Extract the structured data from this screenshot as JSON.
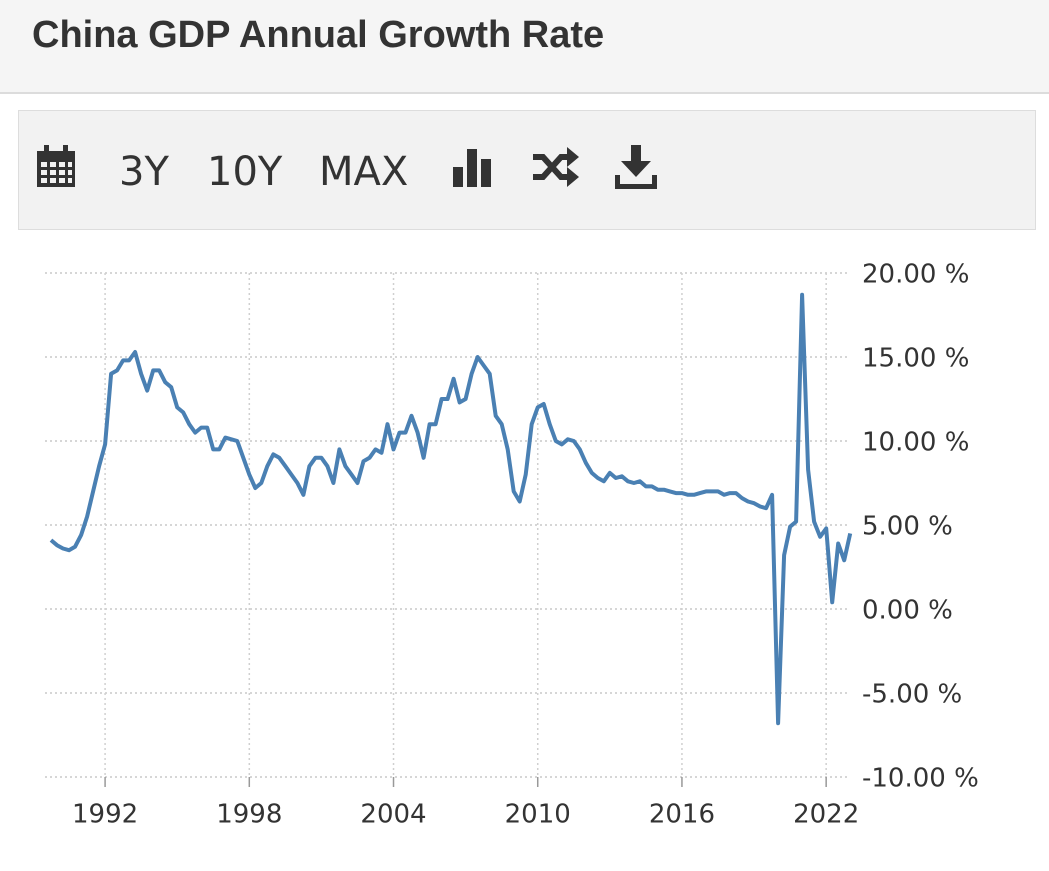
{
  "toolbar": [
    "3Y",
    "10Y",
    "MAX"
  ],
  "chart_data": {
    "type": "line",
    "title": "China GDP Annual Growth Rate",
    "color": "#4a80b3",
    "grid": true,
    "xlim": [
      1989.5,
      2023.2
    ],
    "xticks": [
      1992,
      1998,
      2004,
      2010,
      2016,
      2022
    ],
    "ylim": [
      -10,
      20
    ],
    "yticks": [
      {
        "value": 20,
        "label": "20.00 %"
      },
      {
        "value": 15,
        "label": "15.00 %"
      },
      {
        "value": 10,
        "label": "10.00 %"
      },
      {
        "value": 5,
        "label": "5.00 %"
      },
      {
        "value": 0,
        "label": "0.00 %"
      },
      {
        "value": -5,
        "label": "-5.00 %"
      },
      {
        "value": -10,
        "label": "-10.00 %"
      }
    ],
    "x": [
      1989.75,
      1990.0,
      1990.25,
      1990.5,
      1990.75,
      1991.0,
      1991.25,
      1991.5,
      1991.75,
      1992.0,
      1992.25,
      1992.5,
      1992.75,
      1993.0,
      1993.25,
      1993.5,
      1993.75,
      1994.0,
      1994.25,
      1994.5,
      1994.75,
      1995.0,
      1995.25,
      1995.5,
      1995.75,
      1996.0,
      1996.25,
      1996.5,
      1996.75,
      1997.0,
      1997.25,
      1997.5,
      1997.75,
      1998.0,
      1998.25,
      1998.5,
      1998.75,
      1999.0,
      1999.25,
      1999.5,
      1999.75,
      2000.0,
      2000.25,
      2000.5,
      2000.75,
      2001.0,
      2001.25,
      2001.5,
      2001.75,
      2002.0,
      2002.25,
      2002.5,
      2002.75,
      2003.0,
      2003.25,
      2003.5,
      2003.75,
      2004.0,
      2004.25,
      2004.5,
      2004.75,
      2005.0,
      2005.25,
      2005.5,
      2005.75,
      2006.0,
      2006.25,
      2006.5,
      2006.75,
      2007.0,
      2007.25,
      2007.5,
      2007.75,
      2008.0,
      2008.25,
      2008.5,
      2008.75,
      2009.0,
      2009.25,
      2009.5,
      2009.75,
      2010.0,
      2010.25,
      2010.5,
      2010.75,
      2011.0,
      2011.25,
      2011.5,
      2011.75,
      2012.0,
      2012.25,
      2012.5,
      2012.75,
      2013.0,
      2013.25,
      2013.5,
      2013.75,
      2014.0,
      2014.25,
      2014.5,
      2014.75,
      2015.0,
      2015.25,
      2015.5,
      2015.75,
      2016.0,
      2016.25,
      2016.5,
      2016.75,
      2017.0,
      2017.25,
      2017.5,
      2017.75,
      2018.0,
      2018.25,
      2018.5,
      2018.75,
      2019.0,
      2019.25,
      2019.5,
      2019.75,
      2020.0,
      2020.25,
      2020.5,
      2020.75,
      2021.0,
      2021.25,
      2021.5,
      2021.75,
      2022.0,
      2022.25,
      2022.5,
      2022.75,
      2023.0
    ],
    "values": [
      4.1,
      3.8,
      3.6,
      3.5,
      3.7,
      4.4,
      5.5,
      7.0,
      8.5,
      9.8,
      14.0,
      14.2,
      14.8,
      14.8,
      15.3,
      14.0,
      13.0,
      14.2,
      14.2,
      13.5,
      13.2,
      12.0,
      11.7,
      11.0,
      10.5,
      10.8,
      10.8,
      9.5,
      9.5,
      10.2,
      10.1,
      10.0,
      9.0,
      8.0,
      7.2,
      7.5,
      8.5,
      9.2,
      9.0,
      8.5,
      8.0,
      7.5,
      6.8,
      8.5,
      9.0,
      9.0,
      8.5,
      7.5,
      9.5,
      8.5,
      8.0,
      7.5,
      8.8,
      9.0,
      9.5,
      9.3,
      11.0,
      9.5,
      10.5,
      10.5,
      11.5,
      10.5,
      9.0,
      11.0,
      11.0,
      12.5,
      12.5,
      13.7,
      12.3,
      12.5,
      14.0,
      15.0,
      14.5,
      14.0,
      11.5,
      11.0,
      9.5,
      7.0,
      6.4,
      8.0,
      11.0,
      12.0,
      12.2,
      11.0,
      10.0,
      9.8,
      10.1,
      10.0,
      9.5,
      8.7,
      8.1,
      7.8,
      7.6,
      8.1,
      7.8,
      7.9,
      7.6,
      7.5,
      7.6,
      7.3,
      7.3,
      7.1,
      7.1,
      7.0,
      6.9,
      6.9,
      6.8,
      6.8,
      6.9,
      7.0,
      7.0,
      7.0,
      6.8,
      6.9,
      6.9,
      6.6,
      6.4,
      6.3,
      6.1,
      6.0,
      6.8,
      -6.8,
      3.2,
      4.9,
      5.2,
      18.7,
      8.3,
      5.2,
      4.3,
      4.8,
      0.4,
      3.9,
      2.9,
      4.5
    ]
  }
}
